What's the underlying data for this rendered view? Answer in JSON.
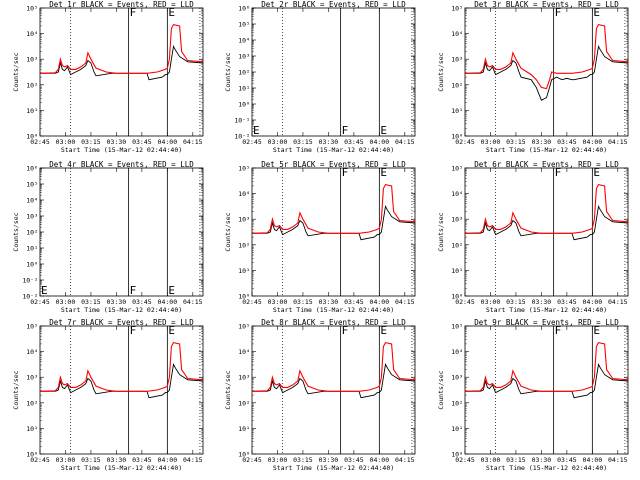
{
  "chart_data": [
    {
      "type": "line",
      "title": "Det 1r BLACK = Events, RED = LLD",
      "xlabel": "Start Time (15-Mar-12 02:44:40)",
      "ylabel": "Counts/sec",
      "yscale": "log",
      "ylim": [
        1,
        100000
      ],
      "xlim": [
        2.75,
        4.35
      ],
      "flags": [
        "F",
        "E"
      ],
      "has_data": true,
      "series": [
        {
          "color": "#000000",
          "profile": "events"
        },
        {
          "color": "#ff0000",
          "profile": "lld"
        }
      ]
    },
    {
      "type": "line",
      "title": "Det 2r BLACK = Events, RED = LLD",
      "xlabel": "Start Time (15-Mar-12 02:44:40)",
      "ylabel": "Counts/sec",
      "yscale": "log",
      "ylim": [
        0.01,
        1000000
      ],
      "xlim": [
        2.75,
        4.35
      ],
      "flags": [
        "E",
        "F",
        "E"
      ],
      "has_data": false,
      "series": []
    },
    {
      "type": "line",
      "title": "Det 3r BLACK = Events, RED = LLD",
      "xlabel": "Start Time (15-Mar-12 02:44:40)",
      "ylabel": "Counts/sec",
      "yscale": "log",
      "ylim": [
        1,
        100000
      ],
      "xlim": [
        2.75,
        4.35
      ],
      "flags": [
        "F",
        "E"
      ],
      "has_data": true,
      "series": [
        {
          "color": "#000000",
          "profile": "events3"
        },
        {
          "color": "#ff0000",
          "profile": "lld3"
        }
      ]
    },
    {
      "type": "line",
      "title": "Det 4r BLACK = Events, RED = LLD",
      "xlabel": "Start Time (15-Mar-12 02:44:40)",
      "ylabel": "Counts/sec",
      "yscale": "log",
      "ylim": [
        0.01,
        1000000
      ],
      "xlim": [
        2.75,
        4.35
      ],
      "flags": [
        "E",
        "F",
        "E"
      ],
      "has_data": false,
      "series": []
    },
    {
      "type": "line",
      "title": "Det 5r BLACK = Events, RED = LLD",
      "xlabel": "Start Time (15-Mar-12 02:44:40)",
      "ylabel": "Counts/sec",
      "yscale": "log",
      "ylim": [
        1,
        100000
      ],
      "xlim": [
        2.75,
        4.35
      ],
      "flags": [
        "F",
        "E"
      ],
      "has_data": true,
      "series": [
        {
          "color": "#000000",
          "profile": "events"
        },
        {
          "color": "#ff0000",
          "profile": "lld"
        }
      ]
    },
    {
      "type": "line",
      "title": "Det 6r BLACK = Events, RED = LLD",
      "xlabel": "Start Time (15-Mar-12 02:44:40)",
      "ylabel": "Counts/sec",
      "yscale": "log",
      "ylim": [
        1,
        100000
      ],
      "xlim": [
        2.75,
        4.35
      ],
      "flags": [
        "F",
        "E"
      ],
      "has_data": true,
      "series": [
        {
          "color": "#000000",
          "profile": "events"
        },
        {
          "color": "#ff0000",
          "profile": "lld"
        }
      ]
    },
    {
      "type": "line",
      "title": "Det 7r BLACK = Events, RED = LLD",
      "xlabel": "Start Time (15-Mar-12 02:44:40)",
      "ylabel": "Counts/sec",
      "yscale": "log",
      "ylim": [
        1,
        100000
      ],
      "xlim": [
        2.75,
        4.35
      ],
      "flags": [
        "F",
        "E"
      ],
      "has_data": true,
      "series": [
        {
          "color": "#000000",
          "profile": "events"
        },
        {
          "color": "#ff0000",
          "profile": "lld"
        }
      ]
    },
    {
      "type": "line",
      "title": "Det 8r BLACK = Events, RED = LLD",
      "xlabel": "Start Time (15-Mar-12 02:44:40)",
      "ylabel": "Counts/sec",
      "yscale": "log",
      "ylim": [
        1,
        100000
      ],
      "xlim": [
        2.75,
        4.35
      ],
      "flags": [
        "F",
        "E"
      ],
      "has_data": true,
      "series": [
        {
          "color": "#000000",
          "profile": "events"
        },
        {
          "color": "#ff0000",
          "profile": "lld"
        }
      ]
    },
    {
      "type": "line",
      "title": "Det 9r BLACK = Events, RED = LLD",
      "xlabel": "Start Time (15-Mar-12 02:44:40)",
      "ylabel": "Counts/sec",
      "yscale": "log",
      "ylim": [
        1,
        100000
      ],
      "xlim": [
        2.75,
        4.35
      ],
      "flags": [
        "F",
        "E"
      ],
      "has_data": true,
      "series": [
        {
          "color": "#000000",
          "profile": "events"
        },
        {
          "color": "#ff0000",
          "profile": "lld"
        }
      ]
    }
  ],
  "x_ticks": [
    {
      "v": 2.75,
      "label": "02:45"
    },
    {
      "v": 3.0,
      "label": "03:00"
    },
    {
      "v": 3.25,
      "label": "03:15"
    },
    {
      "v": 3.5,
      "label": "03:30"
    },
    {
      "v": 3.75,
      "label": "03:45"
    },
    {
      "v": 4.0,
      "label": "04:00"
    },
    {
      "v": 4.25,
      "label": "04:15"
    }
  ],
  "markers": {
    "dotted": [
      3.05,
      4.38
    ],
    "solid": [
      3.62,
      4.0
    ]
  },
  "y_ticks_standard": [
    "10⁰",
    "10¹",
    "10²",
    "10³",
    "10⁴",
    "10⁵"
  ],
  "y_ticks_empty": [
    "10⁻²",
    "10⁻¹",
    "10⁰",
    "10¹",
    "10²",
    "10³",
    "10⁴",
    "10⁵",
    "10⁶"
  ],
  "profiles": {
    "events": [
      [
        2.75,
        2.45
      ],
      [
        2.9,
        2.45
      ],
      [
        2.93,
        2.5
      ],
      [
        2.95,
        2.85
      ],
      [
        2.97,
        2.6
      ],
      [
        2.99,
        2.55
      ],
      [
        3.02,
        2.7
      ],
      [
        3.05,
        2.4
      ],
      [
        3.1,
        2.5
      ],
      [
        3.15,
        2.6
      ],
      [
        3.2,
        2.75
      ],
      [
        3.22,
        2.95
      ],
      [
        3.25,
        2.85
      ],
      [
        3.28,
        2.5
      ],
      [
        3.3,
        2.35
      ],
      [
        3.45,
        2.45
      ],
      [
        3.5,
        2.45
      ],
      [
        3.55,
        2.45
      ],
      [
        3.6,
        2.45
      ],
      [
        3.65,
        2.45
      ],
      [
        3.7,
        2.45
      ],
      [
        3.75,
        2.45
      ],
      [
        3.8,
        2.45
      ],
      [
        3.82,
        2.2
      ],
      [
        3.95,
        2.3
      ],
      [
        3.98,
        2.4
      ],
      [
        4.0,
        2.4
      ],
      [
        4.02,
        2.5
      ],
      [
        4.04,
        3.0
      ],
      [
        4.06,
        3.5
      ],
      [
        4.08,
        3.35
      ],
      [
        4.12,
        3.1
      ],
      [
        4.2,
        2.9
      ],
      [
        4.35,
        2.85
      ]
    ],
    "lld": [
      [
        2.75,
        2.45
      ],
      [
        2.9,
        2.47
      ],
      [
        2.93,
        2.6
      ],
      [
        2.95,
        3.0
      ],
      [
        2.97,
        2.75
      ],
      [
        2.99,
        2.7
      ],
      [
        3.02,
        2.75
      ],
      [
        3.05,
        2.6
      ],
      [
        3.1,
        2.6
      ],
      [
        3.15,
        2.7
      ],
      [
        3.2,
        2.85
      ],
      [
        3.22,
        3.25
      ],
      [
        3.25,
        3.0
      ],
      [
        3.3,
        2.65
      ],
      [
        3.4,
        2.5
      ],
      [
        3.5,
        2.45
      ],
      [
        3.6,
        2.45
      ],
      [
        3.7,
        2.45
      ],
      [
        3.8,
        2.45
      ],
      [
        3.9,
        2.5
      ],
      [
        3.98,
        2.6
      ],
      [
        4.0,
        2.65
      ],
      [
        4.02,
        3.0
      ],
      [
        4.04,
        4.2
      ],
      [
        4.06,
        4.35
      ],
      [
        4.12,
        4.3
      ],
      [
        4.14,
        3.3
      ],
      [
        4.2,
        2.95
      ],
      [
        4.35,
        2.9
      ]
    ],
    "events3": [
      [
        2.75,
        2.45
      ],
      [
        2.9,
        2.45
      ],
      [
        2.93,
        2.5
      ],
      [
        2.95,
        2.85
      ],
      [
        2.97,
        2.6
      ],
      [
        2.99,
        2.55
      ],
      [
        3.02,
        2.7
      ],
      [
        3.05,
        2.4
      ],
      [
        3.1,
        2.5
      ],
      [
        3.15,
        2.6
      ],
      [
        3.2,
        2.75
      ],
      [
        3.22,
        2.95
      ],
      [
        3.25,
        2.85
      ],
      [
        3.28,
        2.5
      ],
      [
        3.3,
        2.3
      ],
      [
        3.4,
        2.2
      ],
      [
        3.45,
        1.9
      ],
      [
        3.5,
        1.4
      ],
      [
        3.55,
        1.5
      ],
      [
        3.58,
        1.9
      ],
      [
        3.6,
        2.2
      ],
      [
        3.65,
        2.3
      ],
      [
        3.7,
        2.2
      ],
      [
        3.75,
        2.25
      ],
      [
        3.8,
        2.2
      ],
      [
        3.82,
        2.2
      ],
      [
        3.95,
        2.3
      ],
      [
        3.98,
        2.4
      ],
      [
        4.0,
        2.4
      ],
      [
        4.02,
        2.5
      ],
      [
        4.04,
        3.0
      ],
      [
        4.06,
        3.5
      ],
      [
        4.08,
        3.35
      ],
      [
        4.12,
        3.1
      ],
      [
        4.2,
        2.9
      ],
      [
        4.35,
        2.85
      ]
    ],
    "lld3": [
      [
        2.75,
        2.45
      ],
      [
        2.9,
        2.47
      ],
      [
        2.93,
        2.6
      ],
      [
        2.95,
        3.0
      ],
      [
        2.97,
        2.75
      ],
      [
        2.99,
        2.7
      ],
      [
        3.02,
        2.75
      ],
      [
        3.05,
        2.6
      ],
      [
        3.1,
        2.6
      ],
      [
        3.15,
        2.7
      ],
      [
        3.2,
        2.85
      ],
      [
        3.22,
        3.25
      ],
      [
        3.25,
        3.0
      ],
      [
        3.3,
        2.65
      ],
      [
        3.4,
        2.4
      ],
      [
        3.45,
        2.2
      ],
      [
        3.5,
        1.9
      ],
      [
        3.55,
        1.85
      ],
      [
        3.58,
        2.2
      ],
      [
        3.6,
        2.5
      ],
      [
        3.65,
        2.45
      ],
      [
        3.7,
        2.45
      ],
      [
        3.8,
        2.45
      ],
      [
        3.9,
        2.5
      ],
      [
        3.98,
        2.6
      ],
      [
        4.0,
        2.65
      ],
      [
        4.02,
        3.0
      ],
      [
        4.04,
        4.2
      ],
      [
        4.06,
        4.35
      ],
      [
        4.12,
        4.3
      ],
      [
        4.14,
        3.3
      ],
      [
        4.2,
        2.95
      ],
      [
        4.35,
        2.9
      ]
    ]
  }
}
